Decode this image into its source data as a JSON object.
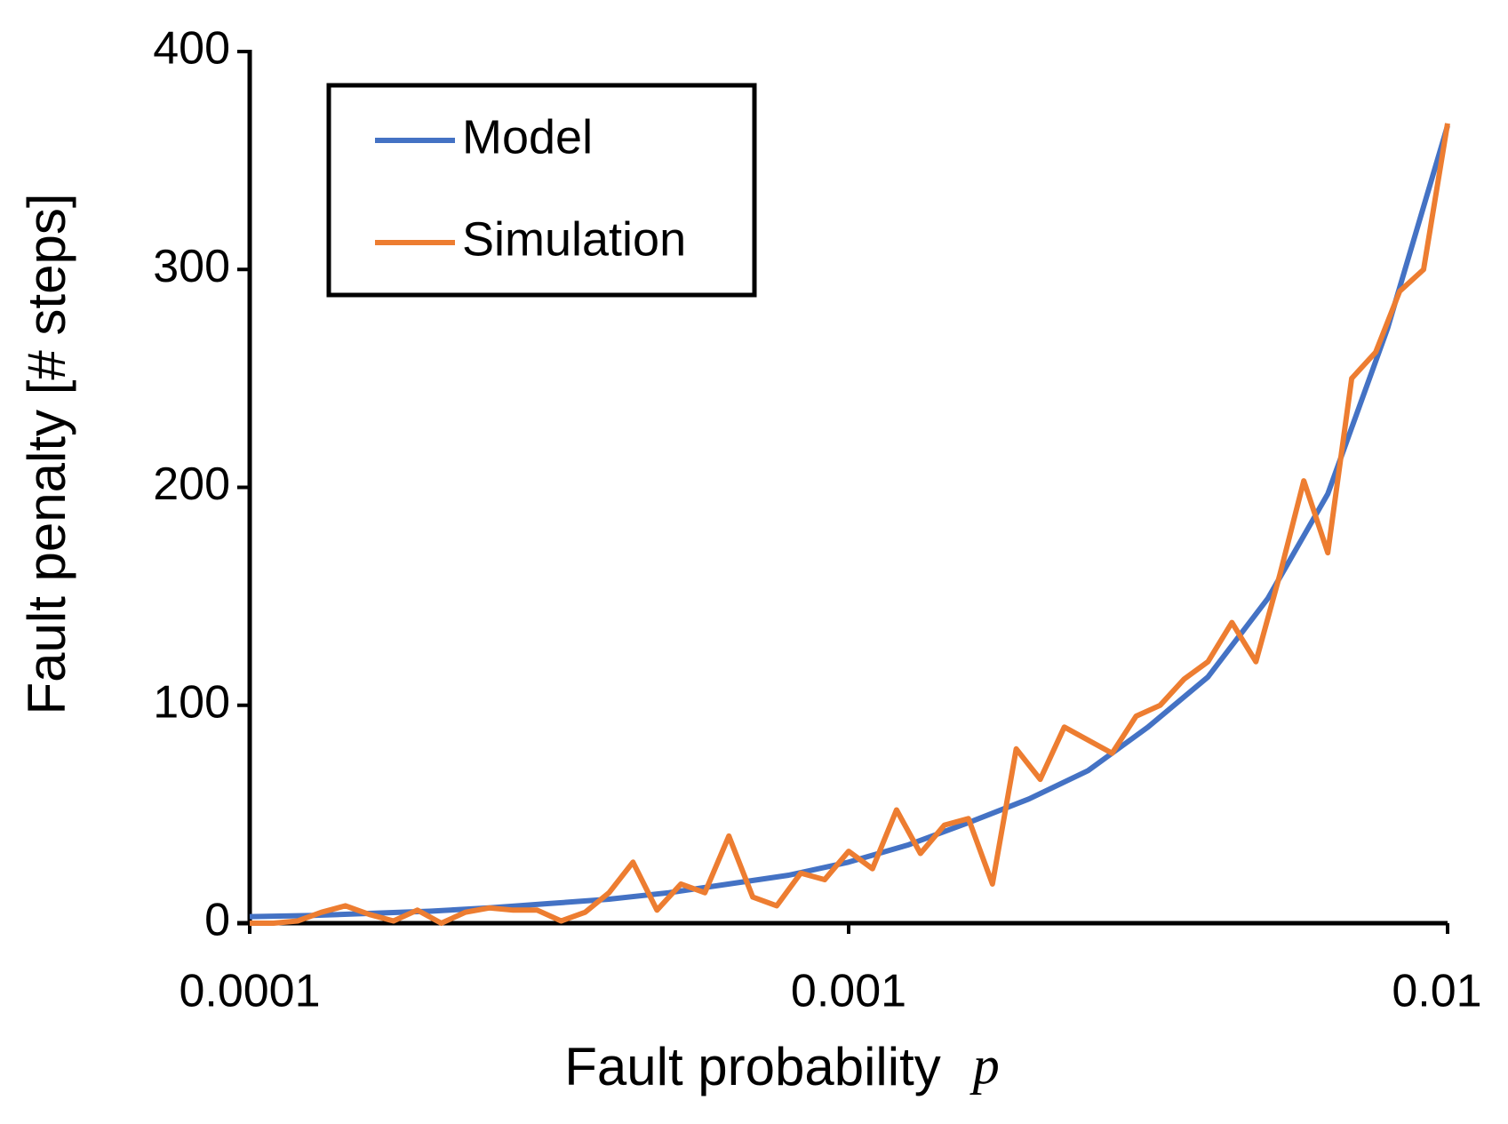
{
  "chart_data": {
    "type": "line",
    "xlabel": "Fault probability",
    "xlabel_symbol": "p",
    "ylabel": "Fault penalty [# steps]",
    "xscale": "log",
    "xlim": [
      0.0001,
      0.01
    ],
    "xticks": [
      0.0001,
      0.001,
      0.01
    ],
    "ylim": [
      0,
      400
    ],
    "yticks": [
      0,
      100,
      200,
      300,
      400
    ],
    "grid": false,
    "legend": "upper left",
    "series": [
      {
        "name": "Model",
        "color": "#4472c4",
        "x": [
          0.0001,
          0.000126,
          0.000158,
          0.0002,
          0.000251,
          0.000316,
          0.000398,
          0.000501,
          0.000631,
          0.000794,
          0.001,
          0.00126,
          0.00158,
          0.002,
          0.00251,
          0.00316,
          0.00398,
          0.00501,
          0.00631,
          0.00794,
          0.01
        ],
        "values": [
          3,
          3.5,
          4.5,
          5.5,
          7,
          9,
          11,
          14,
          18,
          22,
          28,
          36,
          46,
          57,
          70,
          90,
          113,
          149,
          197,
          273,
          366
        ]
      },
      {
        "name": "Simulation",
        "color": "#ed7d31",
        "x": [
          0.0001,
          0.0001096,
          0.0001202,
          0.0001318,
          0.0001445,
          0.0001585,
          0.0001738,
          0.0001905,
          0.0002089,
          0.0002291,
          0.0002512,
          0.0002754,
          0.000302,
          0.0003311,
          0.0003631,
          0.0003981,
          0.0004365,
          0.0004786,
          0.0005248,
          0.0005754,
          0.000631,
          0.0006918,
          0.0007586,
          0.0008318,
          0.000912,
          0.001,
          0.001096,
          0.001202,
          0.001318,
          0.001445,
          0.001585,
          0.001738,
          0.001905,
          0.002089,
          0.002291,
          0.002512,
          0.002754,
          0.00302,
          0.003311,
          0.003631,
          0.003981,
          0.004365,
          0.004786,
          0.005248,
          0.005754,
          0.00631,
          0.006918,
          0.007586,
          0.008318,
          0.00912,
          0.01
        ],
        "values": [
          0,
          0,
          1,
          5,
          8,
          4,
          1,
          6,
          0,
          5,
          7,
          6,
          6,
          1,
          5,
          14,
          28,
          6,
          18,
          14,
          40,
          12,
          8,
          23,
          20,
          33,
          25,
          52,
          32,
          45,
          48,
          18,
          80,
          66,
          90,
          84,
          78,
          95,
          100,
          112,
          120,
          138,
          120,
          160,
          203,
          170,
          250,
          262,
          290,
          300,
          367
        ]
      }
    ]
  }
}
